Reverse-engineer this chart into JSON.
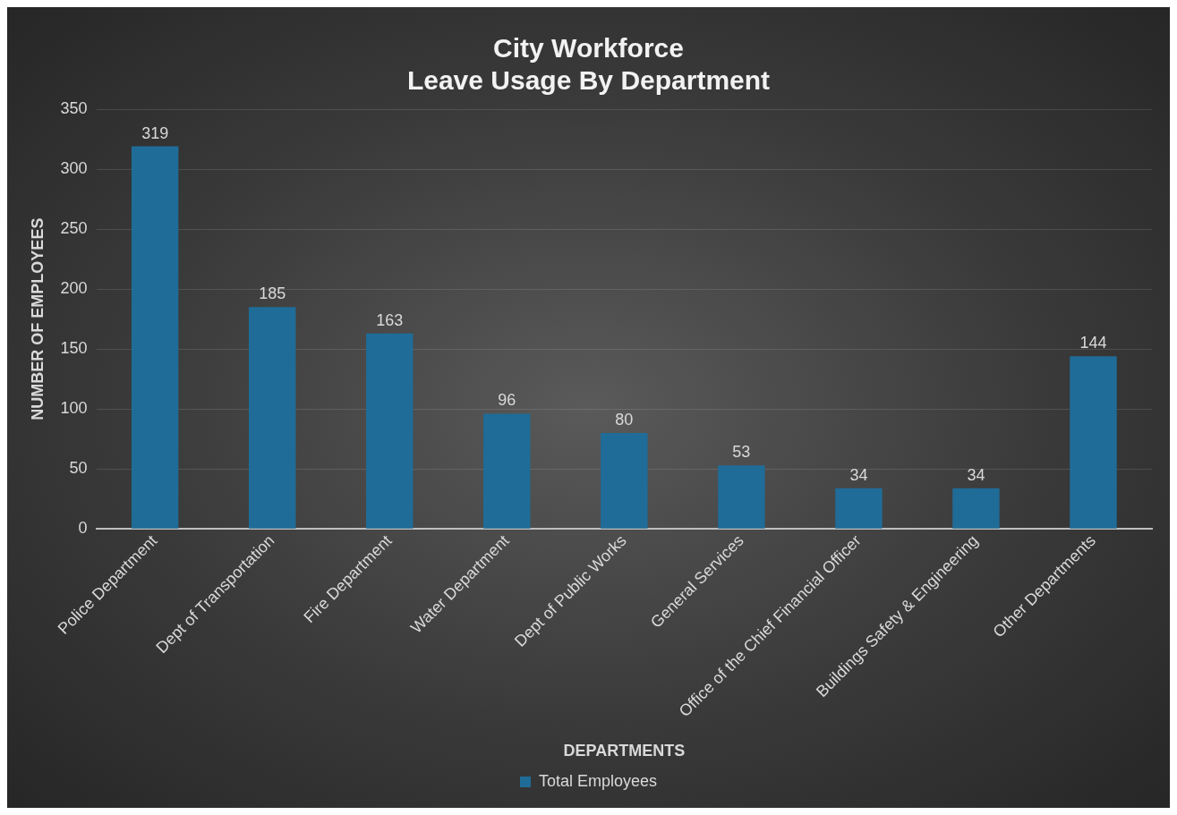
{
  "chart_data": {
    "type": "bar",
    "title": "City Workforce\nLeave Usage By Department",
    "xlabel": "DEPARTMENTS",
    "ylabel": "NUMBER OF EMPLOYEES",
    "categories": [
      "Police Department",
      "Dept of Transportation",
      "Fire Department",
      "Water Department",
      "Dept of Public Works",
      "General Services",
      "Office of the Chief Financial Officer",
      "Buildings Safety & Engineering",
      "Other Departments"
    ],
    "series": [
      {
        "name": "Total Employees",
        "color": "#1f6c98",
        "values": [
          319,
          185,
          163,
          96,
          80,
          53,
          34,
          34,
          144
        ]
      }
    ],
    "ylim": [
      0,
      350
    ],
    "yticks": [
      0,
      50,
      100,
      150,
      200,
      250,
      300,
      350
    ],
    "grid": "y",
    "legend": "bottom",
    "data_labels": true
  }
}
